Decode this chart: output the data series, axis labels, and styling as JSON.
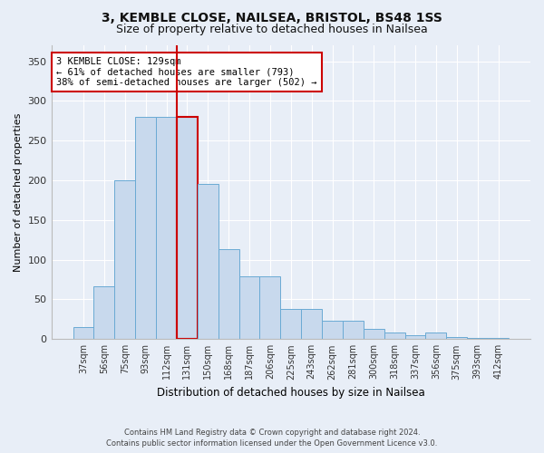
{
  "title1": "3, KEMBLE CLOSE, NAILSEA, BRISTOL, BS48 1SS",
  "title2": "Size of property relative to detached houses in Nailsea",
  "xlabel": "Distribution of detached houses by size in Nailsea",
  "ylabel": "Number of detached properties",
  "bar_color": "#c8d9ed",
  "bar_edge_color": "#6aaad4",
  "highlight_edge_color": "#cc0000",
  "vline_color": "#cc0000",
  "categories": [
    "37sqm",
    "56sqm",
    "75sqm",
    "93sqm",
    "112sqm",
    "131sqm",
    "150sqm",
    "168sqm",
    "187sqm",
    "206sqm",
    "225sqm",
    "243sqm",
    "262sqm",
    "281sqm",
    "300sqm",
    "318sqm",
    "337sqm",
    "356sqm",
    "375sqm",
    "393sqm",
    "412sqm"
  ],
  "values": [
    15,
    67,
    200,
    280,
    280,
    280,
    195,
    113,
    79,
    79,
    38,
    38,
    23,
    23,
    13,
    8,
    5,
    8,
    3,
    2,
    2
  ],
  "highlight_bar_index": 5,
  "ylim": [
    0,
    370
  ],
  "yticks": [
    0,
    50,
    100,
    150,
    200,
    250,
    300,
    350
  ],
  "annotation_text": "3 KEMBLE CLOSE: 129sqm\n← 61% of detached houses are smaller (793)\n38% of semi-detached houses are larger (502) →",
  "annotation_box_color": "white",
  "annotation_box_edge": "#cc0000",
  "footer1": "Contains HM Land Registry data © Crown copyright and database right 2024.",
  "footer2": "Contains public sector information licensed under the Open Government Licence v3.0.",
  "background_color": "#e8eef7",
  "grid_color": "#ffffff"
}
